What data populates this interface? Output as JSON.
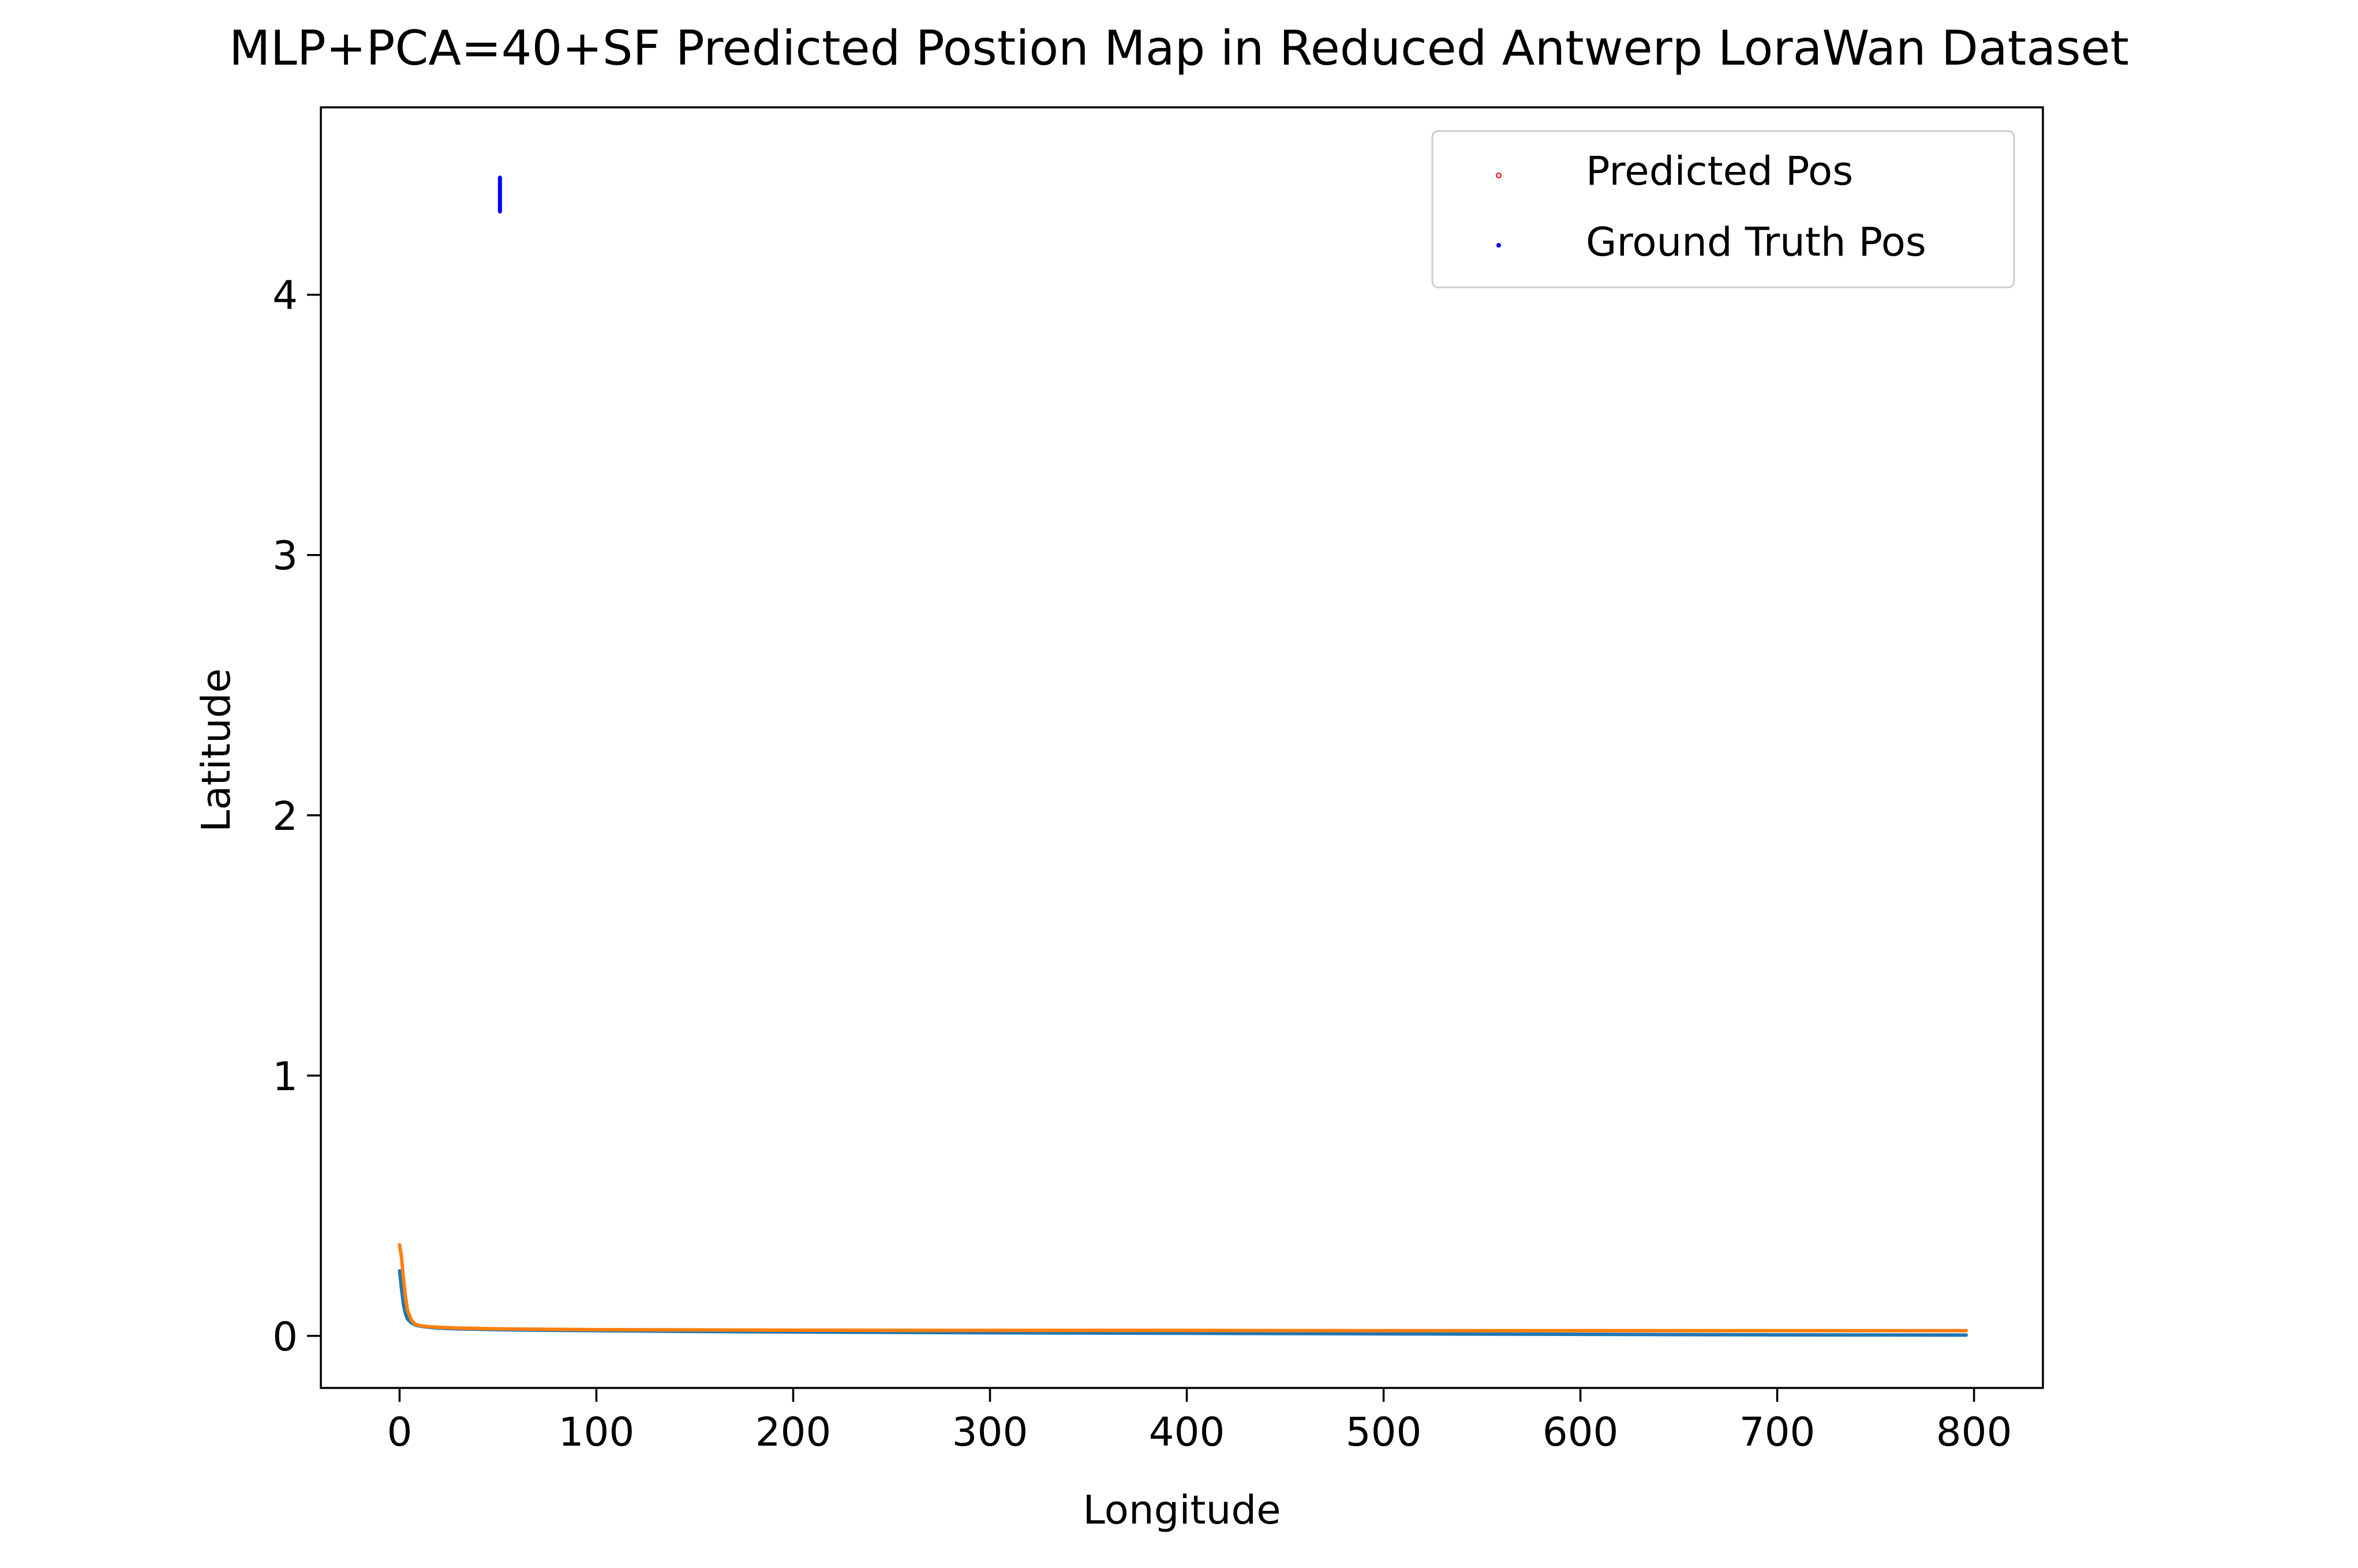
{
  "chart_data": {
    "type": "line",
    "title": "MLP+PCA=40+SF Predicted Postion Map in Reduced Antwerp LoraWan Dataset",
    "xlabel": "Longitude",
    "ylabel": "Latitude",
    "xlim": [
      -40,
      835
    ],
    "ylim": [
      -0.2,
      4.72
    ],
    "xticks": [
      0,
      100,
      200,
      300,
      400,
      500,
      600,
      700,
      800
    ],
    "xtick_labels": [
      "0",
      "100",
      "200",
      "300",
      "400",
      "500",
      "600",
      "700",
      "800"
    ],
    "yticks": [
      0,
      1,
      2,
      3,
      4
    ],
    "ytick_labels": [
      "0",
      "1",
      "2",
      "3",
      "4"
    ],
    "grid": false,
    "legend_position": "top-right",
    "legend": [
      {
        "label": "Predicted Pos",
        "marker": "hollow-dot",
        "color": "#ff0000"
      },
      {
        "label": "Ground Truth Pos",
        "marker": "dot",
        "color": "#0000ff"
      }
    ],
    "series": [
      {
        "color": "#1f77b4",
        "x": [
          0,
          1,
          2,
          3,
          4,
          6,
          8,
          10,
          15,
          20,
          30,
          50,
          80,
          100,
          150,
          200,
          300,
          400,
          500,
          600,
          700,
          796
        ],
        "y": [
          0.25,
          0.18,
          0.12,
          0.085,
          0.065,
          0.05,
          0.042,
          0.038,
          0.033,
          0.03,
          0.027,
          0.024,
          0.021,
          0.02,
          0.017,
          0.015,
          0.012,
          0.01,
          0.008,
          0.006,
          0.004,
          0.003
        ]
      },
      {
        "color": "#ff7f0e",
        "x": [
          0,
          1,
          2,
          3,
          4,
          6,
          8,
          10,
          15,
          20,
          30,
          50,
          80,
          100,
          150,
          200,
          300,
          400,
          500,
          600,
          700,
          796
        ],
        "y": [
          0.35,
          0.3,
          0.22,
          0.15,
          0.1,
          0.06,
          0.045,
          0.04,
          0.035,
          0.033,
          0.03,
          0.027,
          0.025,
          0.024,
          0.023,
          0.022,
          0.021,
          0.021,
          0.02,
          0.02,
          0.02,
          0.02
        ]
      },
      {
        "color": "#0000ff",
        "x": [
          51,
          51
        ],
        "y": [
          4.32,
          4.45
        ]
      }
    ]
  }
}
